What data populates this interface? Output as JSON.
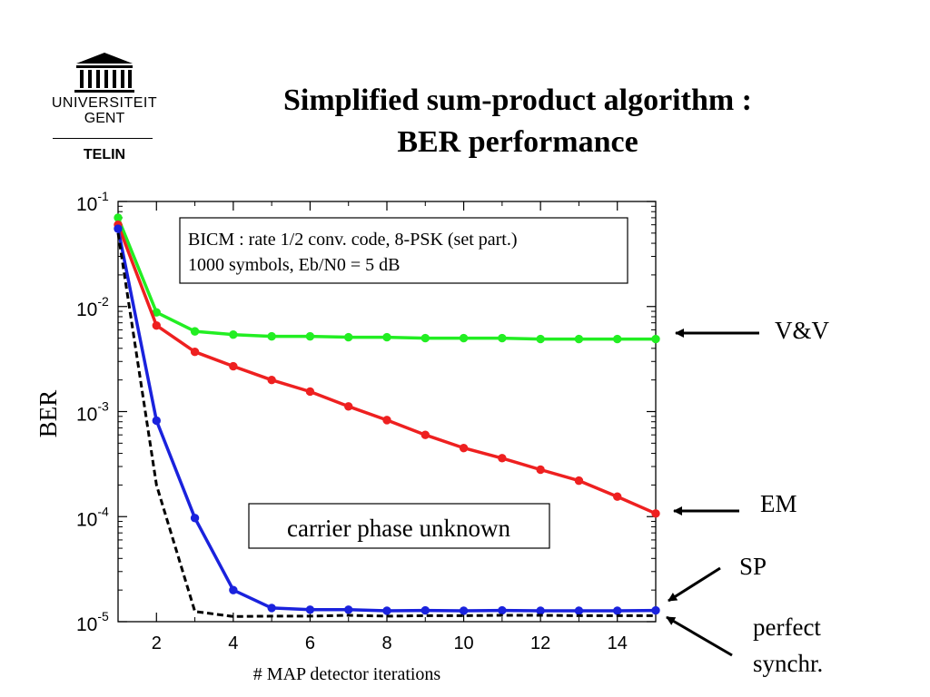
{
  "logo": {
    "university_line1": "UNIVERSITEIT",
    "university_line2": "GENT",
    "department": "TELIN"
  },
  "title": {
    "line1": "Simplified sum-product algorithm :",
    "line2": "BER performance"
  },
  "annotations": {
    "arrow_vv": "V&V",
    "arrow_em": "EM",
    "arrow_sp": "SP",
    "arrow_perfect_line1": "perfect",
    "arrow_perfect_line2": "synchr."
  },
  "chart_data": {
    "type": "line",
    "title": "",
    "xlabel": "# MAP detector iterations",
    "ylabel": "BER",
    "xlim": [
      1,
      15
    ],
    "ylim": [
      1e-05,
      0.1
    ],
    "yscale": "log",
    "xticks": [
      2,
      4,
      6,
      8,
      10,
      12,
      14
    ],
    "yticks": [
      {
        "value": 0.1,
        "base": "10",
        "exp": "-1"
      },
      {
        "value": 0.01,
        "base": "10",
        "exp": "-2"
      },
      {
        "value": 0.001,
        "base": "10",
        "exp": "-3"
      },
      {
        "value": 0.0001,
        "base": "10",
        "exp": "-4"
      },
      {
        "value": 1e-05,
        "base": "10",
        "exp": "-5"
      }
    ],
    "grid": false,
    "info_box": {
      "line1": "BICM : rate 1/2 conv. code, 8-PSK (set part.)",
      "line2": "1000 symbols, Eb/N0 = 5 dB"
    },
    "inner_label": "carrier phase unknown",
    "x": [
      1,
      2,
      3,
      4,
      5,
      6,
      7,
      8,
      9,
      10,
      11,
      12,
      13,
      14,
      15
    ],
    "series": [
      {
        "key": "vv",
        "color": "#22ee22",
        "marker": "circle",
        "values": [
          0.07,
          0.0088,
          0.0058,
          0.0054,
          0.0052,
          0.0052,
          0.0051,
          0.0051,
          0.005,
          0.005,
          0.005,
          0.0049,
          0.0049,
          0.0049,
          0.0049
        ]
      },
      {
        "key": "em",
        "color": "#ee2020",
        "marker": "circle",
        "values": [
          0.06,
          0.0066,
          0.0037,
          0.0027,
          0.002,
          0.00155,
          0.00112,
          0.00083,
          0.0006,
          0.00045,
          0.00036,
          0.00028,
          0.00022,
          0.000155,
          0.000107
        ]
      },
      {
        "key": "sp",
        "color": "#1a22dd",
        "marker": "circle",
        "values": [
          0.055,
          0.00082,
          9.7e-05,
          2e-05,
          1.35e-05,
          1.3e-05,
          1.3e-05,
          1.27e-05,
          1.28e-05,
          1.27e-05,
          1.28e-05,
          1.27e-05,
          1.27e-05,
          1.27e-05,
          1.28e-05
        ]
      },
      {
        "key": "perfect",
        "color": "#000000",
        "marker": "none",
        "dashed": true,
        "values": [
          0.05,
          0.0002,
          1.25e-05,
          1.12e-05,
          1.13e-05,
          1.13e-05,
          1.15e-05,
          1.13e-05,
          1.14e-05,
          1.14e-05,
          1.15e-05,
          1.15e-05,
          1.14e-05,
          1.14e-05,
          1.14e-05
        ]
      }
    ]
  }
}
